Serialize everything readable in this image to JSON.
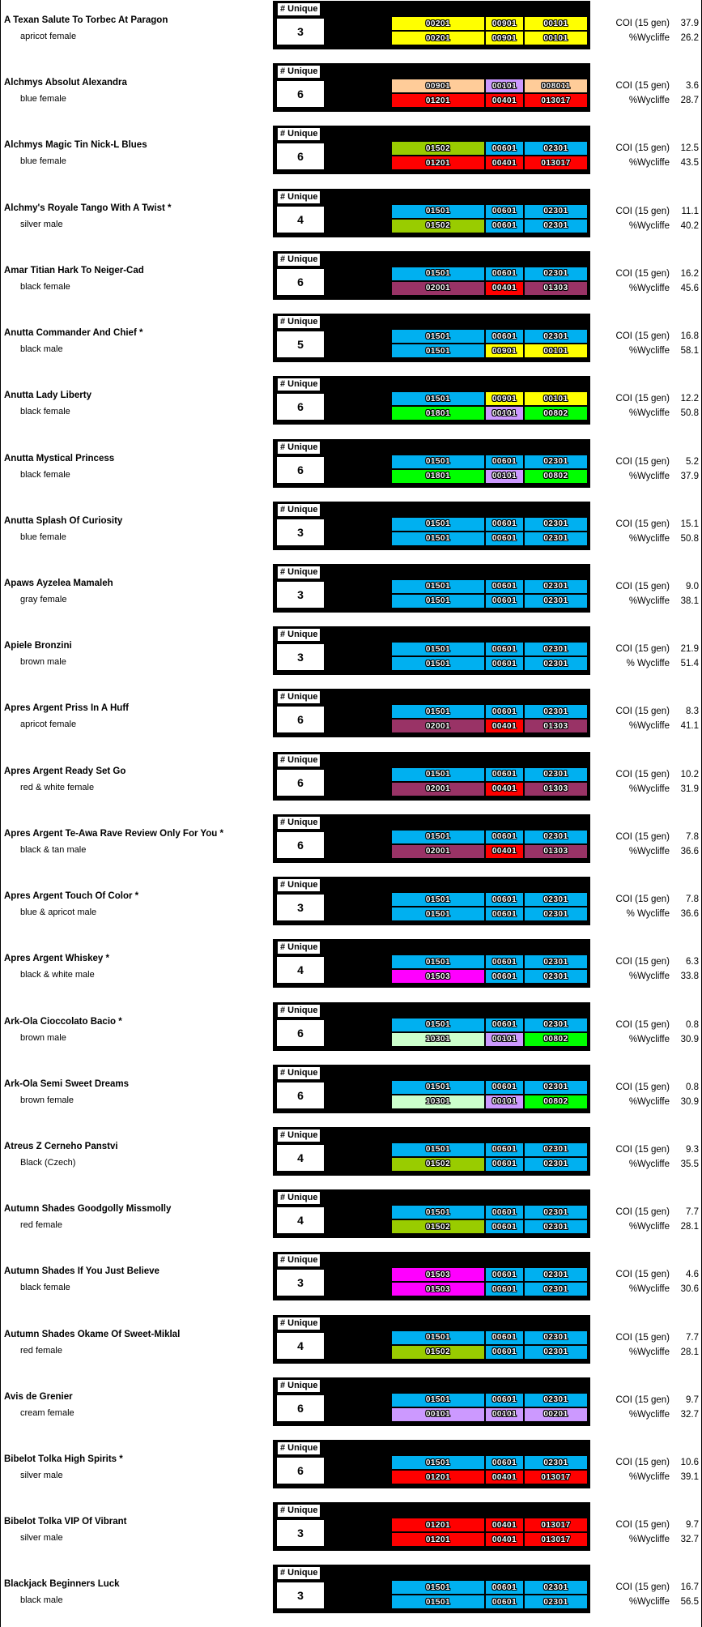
{
  "labels": {
    "unique": "# Unique",
    "coi": "COI (15 gen)"
  },
  "colors": {
    "yellow": "#FFFF00",
    "peach": "#FFCC99",
    "lavender": "#CC99FF",
    "red": "#FF0000",
    "cyan": "#00B0F0",
    "olive": "#99CC00",
    "plum": "#993366",
    "green": "#00FF00",
    "palegreen": "#CCFFCC",
    "magenta": "#FF00FF"
  },
  "dogs": [
    {
      "name": "A Texan Salute To Torbec At Paragon",
      "desc": "apricot female",
      "unique": "3",
      "row1": [
        {
          "code": "00201",
          "color": "yellow"
        },
        {
          "code": "00901",
          "color": "yellow"
        },
        {
          "code": "00101",
          "color": "yellow"
        }
      ],
      "row2": [
        {
          "code": "00201",
          "color": "yellow"
        },
        {
          "code": "00901",
          "color": "yellow"
        },
        {
          "code": "00101",
          "color": "yellow"
        }
      ],
      "coi": "37.9",
      "wyc_label": "%Wycliffe",
      "wyc": "26.2"
    },
    {
      "name": "Alchmys Absolut Alexandra",
      "desc": "blue female",
      "unique": "6",
      "row1": [
        {
          "code": "00901",
          "color": "peach"
        },
        {
          "code": "00101",
          "color": "lavender"
        },
        {
          "code": "008011",
          "color": "peach"
        }
      ],
      "row2": [
        {
          "code": "01201",
          "color": "red"
        },
        {
          "code": "00401",
          "color": "red"
        },
        {
          "code": "013017",
          "color": "red"
        }
      ],
      "coi": "3.6",
      "wyc_label": "%Wycliffe",
      "wyc": "28.7"
    },
    {
      "name": "Alchmys Magic Tin Nick-L Blues",
      "desc": "blue female",
      "unique": "6",
      "row1": [
        {
          "code": "01502",
          "color": "olive"
        },
        {
          "code": "00601",
          "color": "cyan"
        },
        {
          "code": "02301",
          "color": "cyan"
        }
      ],
      "row2": [
        {
          "code": "01201",
          "color": "red"
        },
        {
          "code": "00401",
          "color": "red"
        },
        {
          "code": "013017",
          "color": "red"
        }
      ],
      "coi": "12.5",
      "wyc_label": "%Wycliffe",
      "wyc": "43.5"
    },
    {
      "name": "Alchmy's Royale Tango With A Twist *",
      "desc": "silver male",
      "unique": "4",
      "row1": [
        {
          "code": "01501",
          "color": "cyan"
        },
        {
          "code": "00601",
          "color": "cyan"
        },
        {
          "code": "02301",
          "color": "cyan"
        }
      ],
      "row2": [
        {
          "code": "01502",
          "color": "olive"
        },
        {
          "code": "00601",
          "color": "cyan"
        },
        {
          "code": "02301",
          "color": "cyan"
        }
      ],
      "coi": "11.1",
      "wyc_label": "%Wycliffe",
      "wyc": "40.2"
    },
    {
      "name": "Amar Titian Hark To Neiger-Cad",
      "desc": "black female",
      "unique": "6",
      "row1": [
        {
          "code": "01501",
          "color": "cyan"
        },
        {
          "code": "00601",
          "color": "cyan"
        },
        {
          "code": "02301",
          "color": "cyan"
        }
      ],
      "row2": [
        {
          "code": "02001",
          "color": "plum"
        },
        {
          "code": "00401",
          "color": "red"
        },
        {
          "code": "01303",
          "color": "plum"
        }
      ],
      "coi": "16.2",
      "wyc_label": "%Wycliffe",
      "wyc": "45.6"
    },
    {
      "name": "Anutta Commander And Chief *",
      "desc": "black male",
      "unique": "5",
      "row1": [
        {
          "code": "01501",
          "color": "cyan"
        },
        {
          "code": "00601",
          "color": "cyan"
        },
        {
          "code": "02301",
          "color": "cyan"
        }
      ],
      "row2": [
        {
          "code": "01501",
          "color": "cyan"
        },
        {
          "code": "00901",
          "color": "yellow"
        },
        {
          "code": "00101",
          "color": "yellow"
        }
      ],
      "coi": "16.8",
      "wyc_label": "%Wycliffe",
      "wyc": "58.1"
    },
    {
      "name": "Anutta Lady Liberty",
      "desc": "black female",
      "unique": "6",
      "row1": [
        {
          "code": "01501",
          "color": "cyan"
        },
        {
          "code": "00901",
          "color": "yellow"
        },
        {
          "code": "00101",
          "color": "yellow"
        }
      ],
      "row2": [
        {
          "code": "01801",
          "color": "green"
        },
        {
          "code": "00101",
          "color": "lavender"
        },
        {
          "code": "00802",
          "color": "green"
        }
      ],
      "coi": "12.2",
      "wyc_label": "%Wycliffe",
      "wyc": "50.8"
    },
    {
      "name": "Anutta Mystical Princess",
      "desc": "black female",
      "unique": "6",
      "row1": [
        {
          "code": "01501",
          "color": "cyan"
        },
        {
          "code": "00601",
          "color": "cyan"
        },
        {
          "code": "02301",
          "color": "cyan"
        }
      ],
      "row2": [
        {
          "code": "01801",
          "color": "green"
        },
        {
          "code": "00101",
          "color": "lavender"
        },
        {
          "code": "00802",
          "color": "green"
        }
      ],
      "coi": "5.2",
      "wyc_label": "%Wycliffe",
      "wyc": "37.9"
    },
    {
      "name": "Anutta Splash Of Curiosity",
      "desc": "blue female",
      "unique": "3",
      "row1": [
        {
          "code": "01501",
          "color": "cyan"
        },
        {
          "code": "00601",
          "color": "cyan"
        },
        {
          "code": "02301",
          "color": "cyan"
        }
      ],
      "row2": [
        {
          "code": "01501",
          "color": "cyan"
        },
        {
          "code": "00601",
          "color": "cyan"
        },
        {
          "code": "02301",
          "color": "cyan"
        }
      ],
      "coi": "15.1",
      "wyc_label": "%Wycliffe",
      "wyc": "50.8"
    },
    {
      "name": "Apaws Ayzelea Mamaleh",
      "desc": "gray female",
      "unique": "3",
      "row1": [
        {
          "code": "01501",
          "color": "cyan"
        },
        {
          "code": "00601",
          "color": "cyan"
        },
        {
          "code": "02301",
          "color": "cyan"
        }
      ],
      "row2": [
        {
          "code": "01501",
          "color": "cyan"
        },
        {
          "code": "00601",
          "color": "cyan"
        },
        {
          "code": "02301",
          "color": "cyan"
        }
      ],
      "coi": "9.0",
      "wyc_label": "%Wycliffe",
      "wyc": "38.1"
    },
    {
      "name": "Apiele Bronzini",
      "desc": "brown male",
      "unique": "3",
      "row1": [
        {
          "code": "01501",
          "color": "cyan"
        },
        {
          "code": "00601",
          "color": "cyan"
        },
        {
          "code": "02301",
          "color": "cyan"
        }
      ],
      "row2": [
        {
          "code": "01501",
          "color": "cyan"
        },
        {
          "code": "00601",
          "color": "cyan"
        },
        {
          "code": "02301",
          "color": "cyan"
        }
      ],
      "coi": "21.9",
      "wyc_label": "% Wycliffe",
      "wyc": "51.4"
    },
    {
      "name": "Apres Argent Priss In A Huff",
      "desc": "apricot female",
      "unique": "6",
      "row1": [
        {
          "code": "01501",
          "color": "cyan"
        },
        {
          "code": "00601",
          "color": "cyan"
        },
        {
          "code": "02301",
          "color": "cyan"
        }
      ],
      "row2": [
        {
          "code": "02001",
          "color": "plum"
        },
        {
          "code": "00401",
          "color": "red"
        },
        {
          "code": "01303",
          "color": "plum"
        }
      ],
      "coi": "8.3",
      "wyc_label": "%Wycliffe",
      "wyc": "41.1"
    },
    {
      "name": "Apres Argent Ready Set Go",
      "desc": "red & white female",
      "unique": "6",
      "row1": [
        {
          "code": "01501",
          "color": "cyan"
        },
        {
          "code": "00601",
          "color": "cyan"
        },
        {
          "code": "02301",
          "color": "cyan"
        }
      ],
      "row2": [
        {
          "code": "02001",
          "color": "plum"
        },
        {
          "code": "00401",
          "color": "red"
        },
        {
          "code": "01303",
          "color": "plum"
        }
      ],
      "coi": "10.2",
      "wyc_label": "%Wycliffe",
      "wyc": "31.9"
    },
    {
      "name": "Apres Argent Te-Awa Rave Review Only For You *",
      "desc": "black & tan male",
      "unique": "6",
      "row1": [
        {
          "code": "01501",
          "color": "cyan"
        },
        {
          "code": "00601",
          "color": "cyan"
        },
        {
          "code": "02301",
          "color": "cyan"
        }
      ],
      "row2": [
        {
          "code": "02001",
          "color": "plum"
        },
        {
          "code": "00401",
          "color": "red"
        },
        {
          "code": "01303",
          "color": "plum"
        }
      ],
      "coi": "7.8",
      "wyc_label": "%Wycliffe",
      "wyc": "36.6"
    },
    {
      "name": "Apres Argent Touch Of Color *",
      "desc": "blue & apricot male",
      "unique": "3",
      "row1": [
        {
          "code": "01501",
          "color": "cyan"
        },
        {
          "code": "00601",
          "color": "cyan"
        },
        {
          "code": "02301",
          "color": "cyan"
        }
      ],
      "row2": [
        {
          "code": "01501",
          "color": "cyan"
        },
        {
          "code": "00601",
          "color": "cyan"
        },
        {
          "code": "02301",
          "color": "cyan"
        }
      ],
      "coi": "7.8",
      "wyc_label": "% Wycliffe",
      "wyc": "36.6"
    },
    {
      "name": "Apres Argent Whiskey *",
      "desc": "black & white male",
      "unique": "4",
      "row1": [
        {
          "code": "01501",
          "color": "cyan"
        },
        {
          "code": "00601",
          "color": "cyan"
        },
        {
          "code": "02301",
          "color": "cyan"
        }
      ],
      "row2": [
        {
          "code": "01503",
          "color": "magenta"
        },
        {
          "code": "00601",
          "color": "cyan"
        },
        {
          "code": "02301",
          "color": "cyan"
        }
      ],
      "coi": "6.3",
      "wyc_label": "%Wycliffe",
      "wyc": "33.8"
    },
    {
      "name": "Ark-Ola Cioccolato Bacio *",
      "desc": "brown male",
      "unique": "6",
      "row1": [
        {
          "code": "01501",
          "color": "cyan"
        },
        {
          "code": "00601",
          "color": "cyan"
        },
        {
          "code": "02301",
          "color": "cyan"
        }
      ],
      "row2": [
        {
          "code": "10301",
          "color": "palegreen"
        },
        {
          "code": "00101",
          "color": "lavender"
        },
        {
          "code": "00802",
          "color": "green"
        }
      ],
      "coi": "0.8",
      "wyc_label": "%Wycliffe",
      "wyc": "30.9"
    },
    {
      "name": "Ark-Ola Semi Sweet Dreams",
      "desc": "brown female",
      "unique": "6",
      "row1": [
        {
          "code": "01501",
          "color": "cyan"
        },
        {
          "code": "00601",
          "color": "cyan"
        },
        {
          "code": "02301",
          "color": "cyan"
        }
      ],
      "row2": [
        {
          "code": "10301",
          "color": "palegreen"
        },
        {
          "code": "00101",
          "color": "lavender"
        },
        {
          "code": "00802",
          "color": "green"
        }
      ],
      "coi": "0.8",
      "wyc_label": "%Wycliffe",
      "wyc": "30.9"
    },
    {
      "name": "Atreus Z Cerneho Panstvi",
      "desc": "Black (Czech)",
      "unique": "4",
      "row1": [
        {
          "code": "01501",
          "color": "cyan"
        },
        {
          "code": "00601",
          "color": "cyan"
        },
        {
          "code": "02301",
          "color": "cyan"
        }
      ],
      "row2": [
        {
          "code": "01502",
          "color": "olive"
        },
        {
          "code": "00601",
          "color": "cyan"
        },
        {
          "code": "02301",
          "color": "cyan"
        }
      ],
      "coi": "9.3",
      "wyc_label": "%Wycliffe",
      "wyc": "35.5"
    },
    {
      "name": "Autumn Shades Goodgolly Missmolly",
      "desc": "red female",
      "unique": "4",
      "row1": [
        {
          "code": "01501",
          "color": "cyan"
        },
        {
          "code": "00601",
          "color": "cyan"
        },
        {
          "code": "02301",
          "color": "cyan"
        }
      ],
      "row2": [
        {
          "code": "01502",
          "color": "olive"
        },
        {
          "code": "00601",
          "color": "cyan"
        },
        {
          "code": "02301",
          "color": "cyan"
        }
      ],
      "coi": "7.7",
      "wyc_label": "%Wycliffe",
      "wyc": "28.1"
    },
    {
      "name": "Autumn Shades If You Just Believe",
      "desc": "black female",
      "unique": "3",
      "row1": [
        {
          "code": "01503",
          "color": "magenta"
        },
        {
          "code": "00601",
          "color": "cyan"
        },
        {
          "code": "02301",
          "color": "cyan"
        }
      ],
      "row2": [
        {
          "code": "01503",
          "color": "magenta"
        },
        {
          "code": "00601",
          "color": "cyan"
        },
        {
          "code": "02301",
          "color": "cyan"
        }
      ],
      "coi": "4.6",
      "wyc_label": "%Wycliffe",
      "wyc": "30.6"
    },
    {
      "name": "Autumn Shades Okame Of Sweet-Miklal",
      "desc": "red female",
      "unique": "4",
      "row1": [
        {
          "code": "01501",
          "color": "cyan"
        },
        {
          "code": "00601",
          "color": "cyan"
        },
        {
          "code": "02301",
          "color": "cyan"
        }
      ],
      "row2": [
        {
          "code": "01502",
          "color": "olive"
        },
        {
          "code": "00601",
          "color": "cyan"
        },
        {
          "code": "02301",
          "color": "cyan"
        }
      ],
      "coi": "7.7",
      "wyc_label": "%Wycliffe",
      "wyc": "28.1"
    },
    {
      "name": "Avis de Grenier",
      "desc": "cream female",
      "unique": "6",
      "row1": [
        {
          "code": "01501",
          "color": "cyan"
        },
        {
          "code": "00601",
          "color": "cyan"
        },
        {
          "code": "02301",
          "color": "cyan"
        }
      ],
      "row2": [
        {
          "code": "00101",
          "color": "lavender"
        },
        {
          "code": "00101",
          "color": "lavender"
        },
        {
          "code": "00201",
          "color": "lavender"
        }
      ],
      "coi": "9.7",
      "wyc_label": "%Wycliffe",
      "wyc": "32.7"
    },
    {
      "name": "Bibelot Tolka High Spirits *",
      "desc": "silver male",
      "unique": "6",
      "row1": [
        {
          "code": "01501",
          "color": "cyan"
        },
        {
          "code": "00601",
          "color": "cyan"
        },
        {
          "code": "02301",
          "color": "cyan"
        }
      ],
      "row2": [
        {
          "code": "01201",
          "color": "red"
        },
        {
          "code": "00401",
          "color": "red"
        },
        {
          "code": "013017",
          "color": "red"
        }
      ],
      "coi": "10.6",
      "wyc_label": "%Wycliffe",
      "wyc": "39.1"
    },
    {
      "name": "Bibelot Tolka VIP Of Vibrant",
      "desc": "silver male",
      "unique": "3",
      "row1": [
        {
          "code": "01201",
          "color": "red"
        },
        {
          "code": "00401",
          "color": "red"
        },
        {
          "code": "013017",
          "color": "red"
        }
      ],
      "row2": [
        {
          "code": "01201",
          "color": "red"
        },
        {
          "code": "00401",
          "color": "red"
        },
        {
          "code": "013017",
          "color": "red"
        }
      ],
      "coi": "9.7",
      "wyc_label": "%Wycliffe",
      "wyc": "32.7"
    },
    {
      "name": "Blackjack Beginners Luck",
      "desc": "black male",
      "unique": "3",
      "row1": [
        {
          "code": "01501",
          "color": "cyan"
        },
        {
          "code": "00601",
          "color": "cyan"
        },
        {
          "code": "02301",
          "color": "cyan"
        }
      ],
      "row2": [
        {
          "code": "01501",
          "color": "cyan"
        },
        {
          "code": "00601",
          "color": "cyan"
        },
        {
          "code": "02301",
          "color": "cyan"
        }
      ],
      "coi": "16.7",
      "wyc_label": "%Wycliffe",
      "wyc": "56.5"
    }
  ]
}
